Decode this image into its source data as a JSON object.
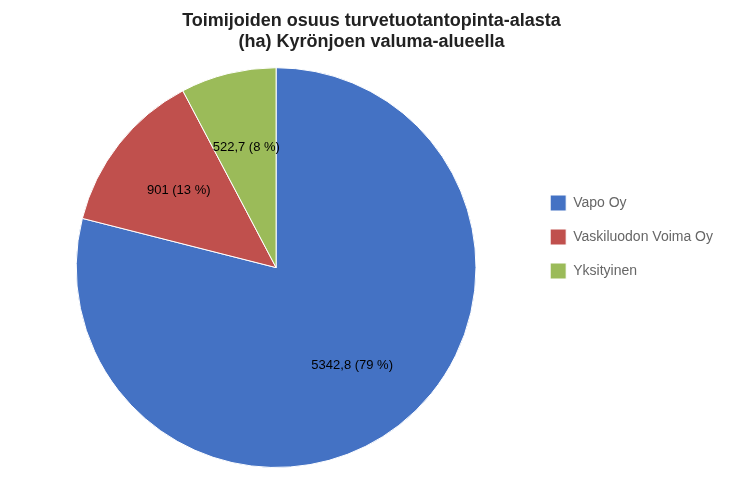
{
  "chart_data": {
    "type": "pie",
    "title": "Toimijoiden osuus turvetuotantopinta-alasta\n(ha) Kyrönjoen valuma-alueella",
    "categories": [
      "Vapo Oy",
      "Vaskiluodon Voima Oy",
      "Yksityinen"
    ],
    "values": [
      5342.8,
      901.0,
      522.7
    ],
    "value_labels": [
      "5342,8 (79 %)",
      "901 (13 %)",
      "522,7 (8 %)"
    ],
    "colors": [
      "#4472C4",
      "#C0504D",
      "#9BBB59"
    ],
    "data_labels": true,
    "legend": "right"
  }
}
